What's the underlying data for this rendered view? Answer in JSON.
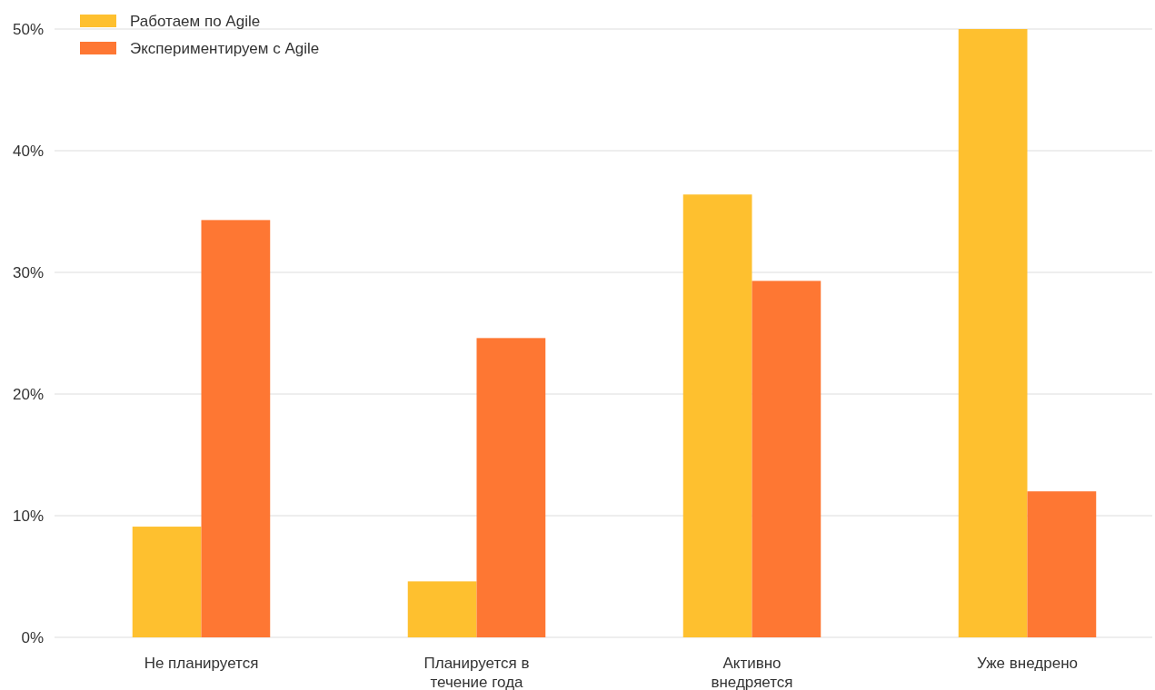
{
  "chart_data": {
    "type": "bar",
    "categories": [
      "Не планируется",
      "Планируется в течение года",
      "Активно внедряется",
      "Уже внедрено"
    ],
    "series": [
      {
        "name": "Работаем по Agile",
        "color": "#fec02f",
        "values": [
          9.1,
          4.6,
          36.4,
          50
        ]
      },
      {
        "name": "Экспериментируем с Agile",
        "color": "#fe7733",
        "values": [
          34.3,
          24.6,
          29.3,
          12.0
        ]
      }
    ],
    "ylim": [
      0,
      50
    ],
    "yticks": [
      {
        "value": 0,
        "label": "0%"
      },
      {
        "value": 10,
        "label": "10%"
      },
      {
        "value": 20,
        "label": "20%"
      },
      {
        "value": 30,
        "label": "30%"
      },
      {
        "value": 40,
        "label": "40%"
      },
      {
        "value": 50,
        "label": "50%"
      }
    ],
    "grid": "y",
    "legend": "top left"
  }
}
